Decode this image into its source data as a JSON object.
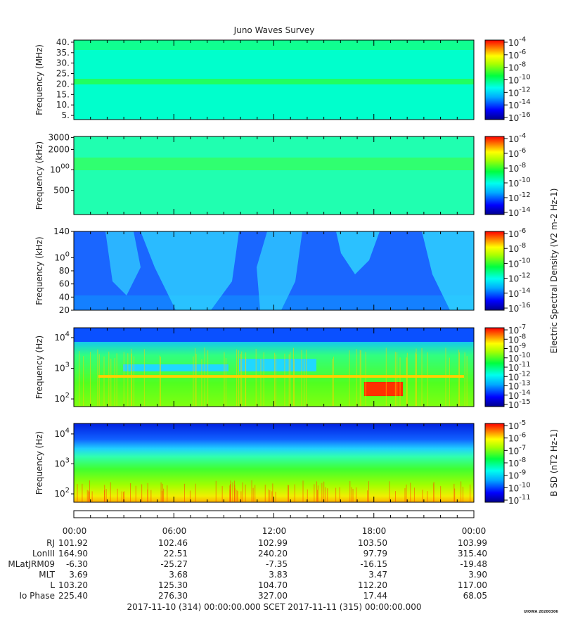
{
  "title": "Juno Waves Survey",
  "chart_data": [
    {
      "type": "heatmap",
      "ylabel": "Frequency (MHz)",
      "yticks": [
        "40.",
        "35.",
        "30.",
        "25.",
        "20.",
        "15.",
        "10.",
        "5."
      ],
      "ylim": [
        3,
        41
      ],
      "colorbar_ticks": [
        "10-4",
        "10-6",
        "10-8",
        "10-10",
        "10-12",
        "10-14",
        "10-16"
      ],
      "colorbar_label": ""
    },
    {
      "type": "heatmap",
      "ylabel": "Frequency (kHz)",
      "yscale": "log",
      "yticks": [
        "3000",
        "2000",
        "1000",
        "500"
      ],
      "colorbar_ticks": [
        "10-4",
        "10-6",
        "10-8",
        "10-10",
        "10-12",
        "10-14"
      ],
      "colorbar_label": ""
    },
    {
      "type": "heatmap",
      "ylabel": "Frequency (kHz)",
      "yticks": [
        "140",
        "100",
        "80",
        "60",
        "40",
        "20"
      ],
      "ylim": [
        20,
        140
      ],
      "colorbar_ticks": [
        "10-6",
        "10-8",
        "10-10",
        "10-12",
        "10-14",
        "10-16"
      ],
      "colorbar_label": "Electric Spectral Density (V2 m-2 Hz-1)"
    },
    {
      "type": "heatmap",
      "ylabel": "Frequency (Hz)",
      "yscale": "log",
      "yticks": [
        "10^4",
        "10^3",
        "10^2"
      ],
      "colorbar_ticks": [
        "10-7",
        "10-8",
        "10-9",
        "10-10",
        "10-11",
        "10-12",
        "10-13",
        "10-14",
        "10-15"
      ],
      "colorbar_label": ""
    },
    {
      "type": "heatmap",
      "ylabel": "Frequency (Hz)",
      "yscale": "log",
      "yticks": [
        "10^4",
        "10^3",
        "10^2"
      ],
      "colorbar_ticks": [
        "10-5",
        "10-6",
        "10-7",
        "10-8",
        "10-9",
        "10-10",
        "10-11"
      ],
      "colorbar_label": "B SD (nT2 Hz-1)"
    }
  ],
  "ephemeris": {
    "times": [
      "00:00",
      "06:00",
      "12:00",
      "18:00",
      "00:00"
    ],
    "rows": [
      {
        "label": "RJ",
        "values": [
          "101.92",
          "102.46",
          "102.99",
          "103.50",
          "103.99"
        ]
      },
      {
        "label": "LonIII",
        "values": [
          "164.90",
          "22.51",
          "240.20",
          "97.79",
          "315.40"
        ]
      },
      {
        "label": "MLatJRM09",
        "values": [
          "-6.30",
          "-25.27",
          "-7.35",
          "-16.15",
          "-19.48"
        ]
      },
      {
        "label": "MLT",
        "values": [
          "3.69",
          "3.68",
          "3.83",
          "3.47",
          "3.90"
        ]
      },
      {
        "label": "L",
        "values": [
          "103.20",
          "125.30",
          "104.70",
          "112.20",
          "117.00"
        ]
      },
      {
        "label": "Io Phase",
        "values": [
          "225.40",
          "276.30",
          "327.00",
          "17.44",
          "68.05"
        ]
      }
    ]
  },
  "footer": "2017-11-10 (314) 00:00:00.000     SCET     2017-11-11 (315) 00:00:00.000",
  "stamp": "UIOWA 20200306"
}
